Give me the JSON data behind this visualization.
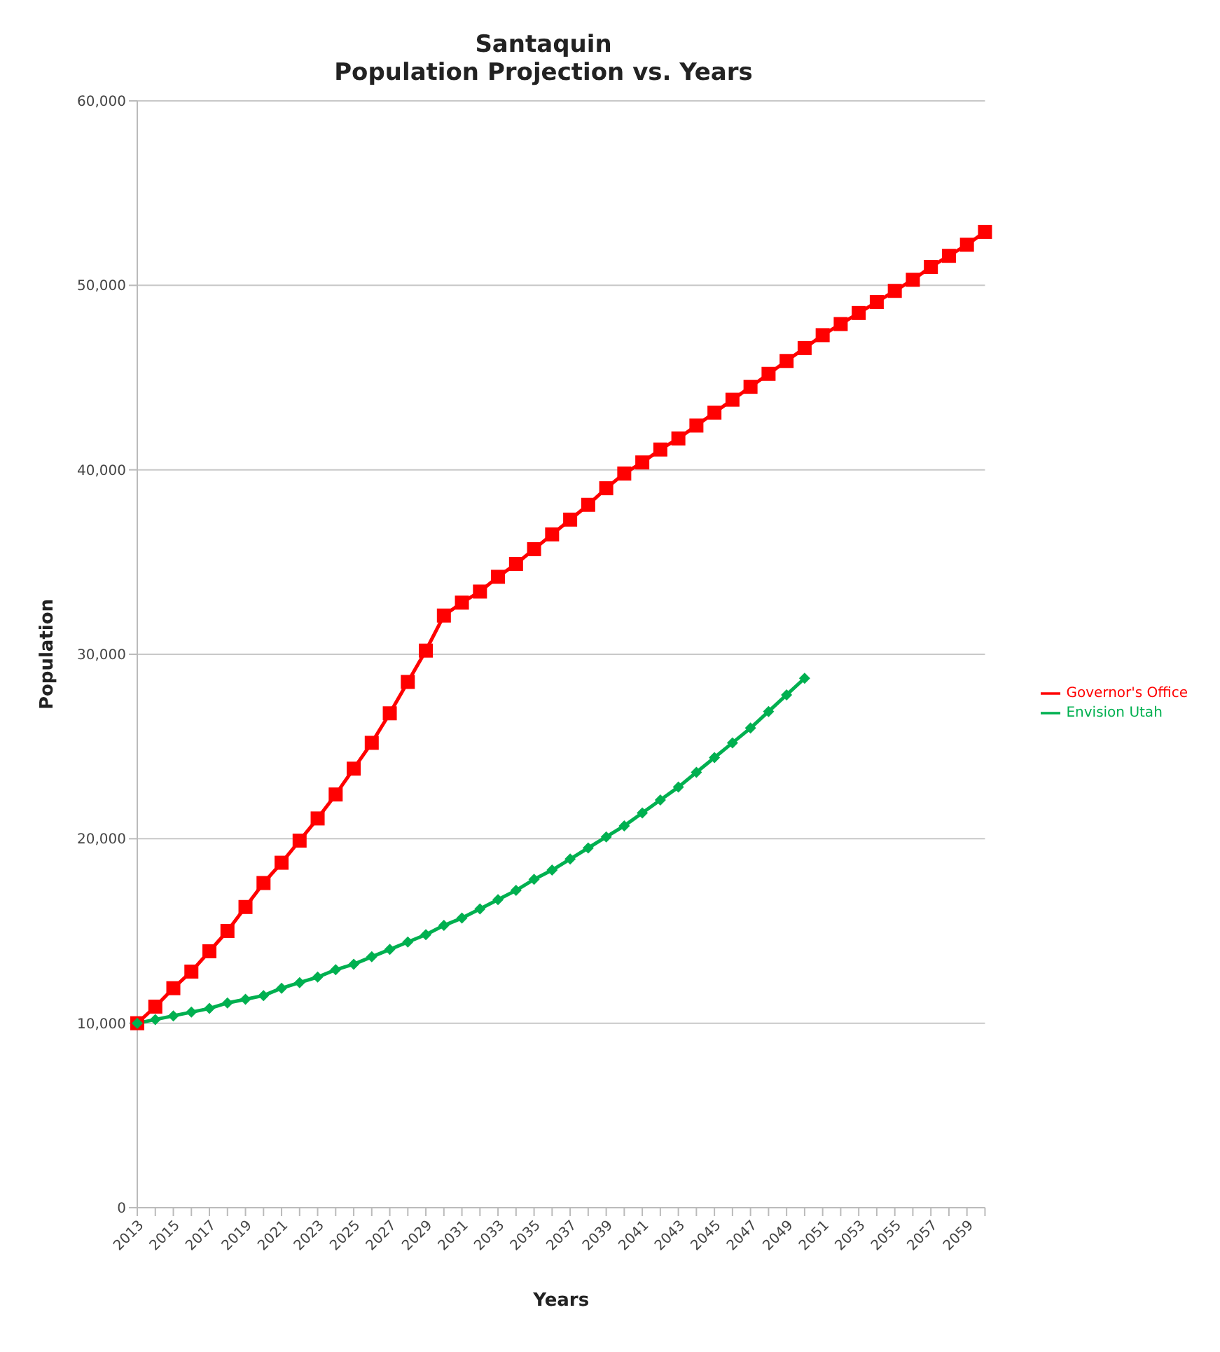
{
  "chart_data": {
    "type": "line",
    "title": "Santaquin",
    "subtitle": "Population Projection vs. Years",
    "xlabel": "Years",
    "ylabel": "Population",
    "categories": [
      "2013",
      null,
      "2015",
      null,
      "2017",
      null,
      "2019",
      null,
      "2021",
      null,
      "2023",
      null,
      "2025",
      null,
      "2027",
      null,
      "2029",
      null,
      "2031",
      null,
      "2033",
      null,
      "2035",
      null,
      "2037",
      null,
      "2039",
      null,
      "2041",
      null,
      "2043",
      null,
      "2045",
      null,
      "2047",
      null,
      "2049",
      null,
      "2051",
      null,
      "2053",
      null,
      "2055",
      null,
      "2057",
      null,
      "2059",
      null
    ],
    "series": [
      {
        "name": "Governor's Office",
        "color": "#ff0000",
        "marker": "square",
        "values": [
          10000,
          10900,
          11900,
          12800,
          13900,
          15000,
          16300,
          17600,
          18700,
          19900,
          21100,
          22400,
          23800,
          25200,
          26800,
          28500,
          30200,
          32100,
          32800,
          33400,
          34200,
          34900,
          35700,
          36500,
          37300,
          38100,
          39000,
          39800,
          40400,
          41100,
          41700,
          42400,
          43100,
          43800,
          44500,
          45200,
          45900,
          46600,
          47300,
          47900,
          48500,
          49100,
          49700,
          50300,
          51000,
          51600,
          52200,
          52900
        ]
      },
      {
        "name": "Envision Utah",
        "color": "#00b050",
        "marker": "diamond",
        "values": [
          10000,
          10200,
          10400,
          10600,
          10800,
          11100,
          11300,
          11500,
          11900,
          12200,
          12500,
          12900,
          13200,
          13600,
          14000,
          14400,
          14800,
          15300,
          15700,
          16200,
          16700,
          17200,
          17800,
          18300,
          18900,
          19500,
          20100,
          20700,
          21400,
          22100,
          22800,
          23600,
          24400,
          25200,
          26000,
          26900,
          27800,
          28700,
          null,
          null,
          null,
          null,
          null,
          null,
          null,
          null,
          null,
          null
        ]
      }
    ],
    "ylim": [
      0,
      60000
    ],
    "yticks": [
      0,
      {
        "value": 10000,
        "label": "10,000"
      },
      {
        "value": 20000,
        "label": "20,000"
      },
      {
        "value": 30000,
        "label": "30,000"
      },
      {
        "value": 40000,
        "label": "40,000"
      },
      {
        "value": 50000,
        "label": "50,000"
      },
      {
        "value": 60000,
        "label": "60,000"
      }
    ],
    "grid": "y",
    "legend": "right"
  }
}
